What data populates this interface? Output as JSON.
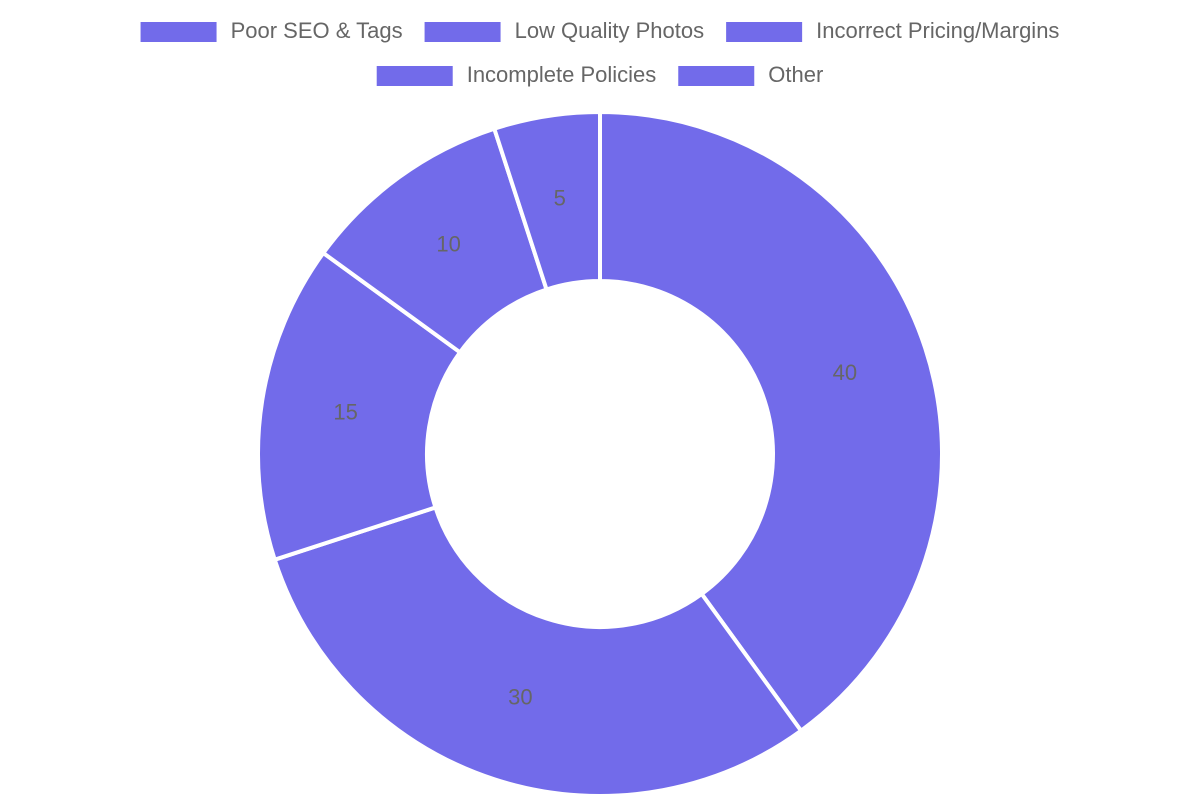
{
  "chart_data": {
    "type": "doughnut",
    "categories": [
      "Poor SEO & Tags",
      "Low Quality Photos",
      "Incorrect Pricing/Margins",
      "Incomplete Policies",
      "Other"
    ],
    "values": [
      40,
      30,
      15,
      10,
      5
    ],
    "color": "#726bea",
    "legend": "top"
  }
}
